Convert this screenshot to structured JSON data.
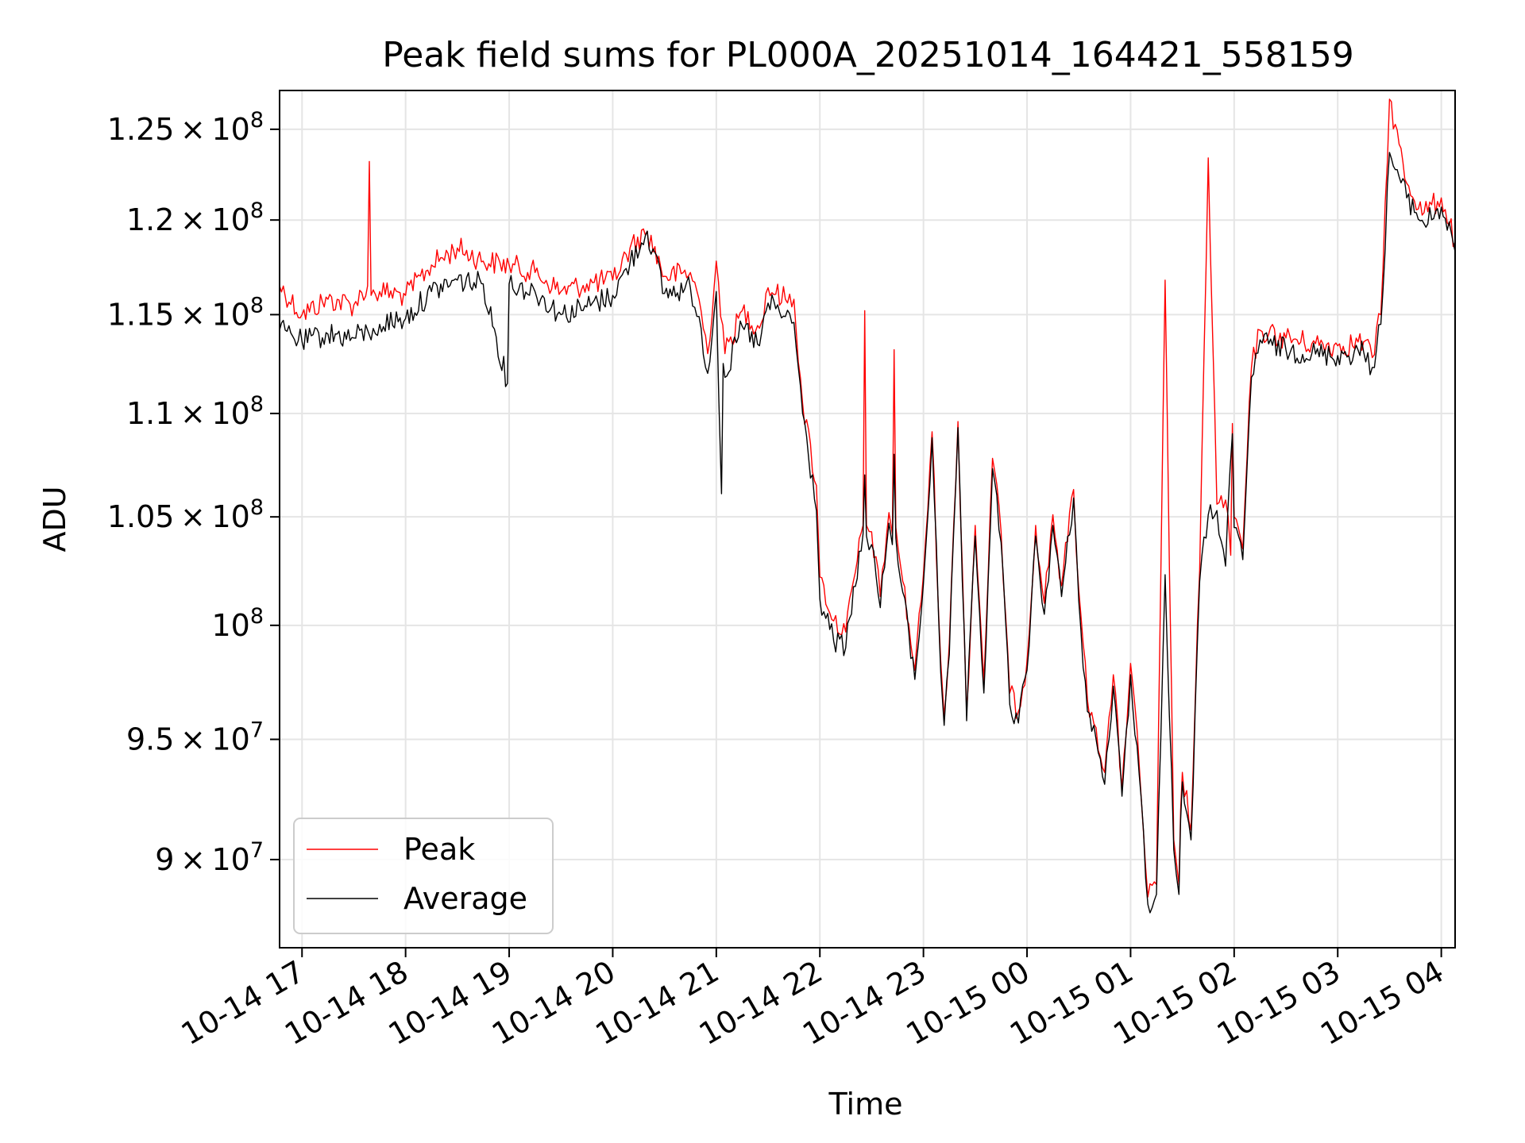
{
  "chart_data": {
    "type": "line",
    "title": "Peak field sums for PL000A_20251014_164421_558159",
    "xlabel": "Time",
    "ylabel": "ADU",
    "xlim": [
      "2025-10-14 16:47",
      "2025-10-15 04:08"
    ],
    "ylim": [
      86500000,
      127200000
    ],
    "x_ticks": [
      {
        "t": "2025-10-14 17:00",
        "label": "10-14 17"
      },
      {
        "t": "2025-10-14 18:00",
        "label": "10-14 18"
      },
      {
        "t": "2025-10-14 19:00",
        "label": "10-14 19"
      },
      {
        "t": "2025-10-14 20:00",
        "label": "10-14 20"
      },
      {
        "t": "2025-10-14 21:00",
        "label": "10-14 21"
      },
      {
        "t": "2025-10-14 22:00",
        "label": "10-14 22"
      },
      {
        "t": "2025-10-14 23:00",
        "label": "10-14 23"
      },
      {
        "t": "2025-10-15 00:00",
        "label": "10-15 00"
      },
      {
        "t": "2025-10-15 01:00",
        "label": "10-15 01"
      },
      {
        "t": "2025-10-15 02:00",
        "label": "10-15 02"
      },
      {
        "t": "2025-10-15 03:00",
        "label": "10-15 03"
      },
      {
        "t": "2025-10-15 04:00",
        "label": "10-15 04"
      }
    ],
    "y_ticks": [
      {
        "v": 90000000,
        "mant": "9",
        "exp": "7"
      },
      {
        "v": 95000000,
        "mant": "9.5",
        "exp": "7"
      },
      {
        "v": 100000000,
        "mant": "",
        "exp": "8"
      },
      {
        "v": 105000000,
        "mant": "1.05",
        "exp": "8"
      },
      {
        "v": 110000000,
        "mant": "1.1",
        "exp": "8"
      },
      {
        "v": 115000000,
        "mant": "1.15",
        "exp": "8"
      },
      {
        "v": 120000000,
        "mant": "1.2",
        "exp": "8"
      },
      {
        "v": 125000000,
        "mant": "1.25",
        "exp": "8"
      }
    ],
    "log_scale": "y",
    "grid": true,
    "legend_position": "lower-left",
    "series": [
      {
        "name": "Peak",
        "color": "#ff0000",
        "x": [
          "2025-10-14 16:47",
          "2025-10-14 17:00",
          "2025-10-14 17:15",
          "2025-10-14 17:30",
          "2025-10-14 17:38",
          "2025-10-14 17:39",
          "2025-10-14 17:40",
          "2025-10-14 17:45",
          "2025-10-14 18:00",
          "2025-10-14 18:15",
          "2025-10-14 18:30",
          "2025-10-14 18:45",
          "2025-10-14 19:00",
          "2025-10-14 19:15",
          "2025-10-14 19:30",
          "2025-10-14 19:45",
          "2025-10-14 20:00",
          "2025-10-14 20:10",
          "2025-10-14 20:20",
          "2025-10-14 20:30",
          "2025-10-14 20:45",
          "2025-10-14 20:50",
          "2025-10-14 20:55",
          "2025-10-14 21:00",
          "2025-10-14 21:05",
          "2025-10-14 21:15",
          "2025-10-14 21:25",
          "2025-10-14 21:30",
          "2025-10-14 21:40",
          "2025-10-14 21:45",
          "2025-10-14 21:50",
          "2025-10-14 21:58",
          "2025-10-14 22:00",
          "2025-10-14 22:08",
          "2025-10-14 22:15",
          "2025-10-14 22:25",
          "2025-10-14 22:26",
          "2025-10-14 22:27",
          "2025-10-14 22:30",
          "2025-10-14 22:35",
          "2025-10-14 22:40",
          "2025-10-14 22:42",
          "2025-10-14 22:43",
          "2025-10-14 22:44",
          "2025-10-14 22:48",
          "2025-10-14 22:55",
          "2025-10-14 23:00",
          "2025-10-14 23:05",
          "2025-10-14 23:10",
          "2025-10-14 23:12",
          "2025-10-14 23:15",
          "2025-10-14 23:20",
          "2025-10-14 23:25",
          "2025-10-14 23:30",
          "2025-10-14 23:35",
          "2025-10-14 23:40",
          "2025-10-14 23:45",
          "2025-10-14 23:50",
          "2025-10-14 23:55",
          "2025-10-15 00:00",
          "2025-10-15 00:05",
          "2025-10-15 00:10",
          "2025-10-15 00:15",
          "2025-10-15 00:20",
          "2025-10-15 00:27",
          "2025-10-15 00:30",
          "2025-10-15 00:35",
          "2025-10-15 00:40",
          "2025-10-15 00:45",
          "2025-10-15 00:50",
          "2025-10-15 00:55",
          "2025-10-15 01:00",
          "2025-10-15 01:05",
          "2025-10-15 01:10",
          "2025-10-15 01:15",
          "2025-10-15 01:20",
          "2025-10-15 01:25",
          "2025-10-15 01:28",
          "2025-10-15 01:29",
          "2025-10-15 01:30",
          "2025-10-15 01:35",
          "2025-10-15 01:40",
          "2025-10-15 01:45",
          "2025-10-15 01:50",
          "2025-10-15 01:55",
          "2025-10-15 01:58",
          "2025-10-15 01:59",
          "2025-10-15 02:00",
          "2025-10-15 02:05",
          "2025-10-15 02:10",
          "2025-10-15 02:15",
          "2025-10-15 02:20",
          "2025-10-15 02:30",
          "2025-10-15 02:45",
          "2025-10-15 03:00",
          "2025-10-15 03:15",
          "2025-10-15 03:20",
          "2025-10-15 03:25",
          "2025-10-15 03:30",
          "2025-10-15 03:40",
          "2025-10-15 03:50",
          "2025-10-15 04:00",
          "2025-10-15 04:08"
        ],
        "y": [
          116500000,
          115000000,
          115800000,
          115500000,
          116500000,
          123200000,
          116000000,
          116200000,
          116000000,
          117600000,
          118500000,
          117800000,
          117600000,
          117200000,
          116200000,
          116600000,
          116800000,
          118500000,
          119400000,
          117000000,
          117200000,
          115800000,
          113000000,
          117800000,
          113000000,
          115200000,
          114300000,
          116400000,
          115800000,
          115800000,
          110500000,
          106500000,
          102200000,
          100200000,
          99700000,
          104600000,
          115200000,
          104600000,
          104300000,
          101300000,
          105200000,
          104200000,
          113200000,
          104500000,
          102000000,
          98000000,
          102300000,
          109100000,
          98400000,
          96000000,
          99200000,
          109600000,
          96200000,
          104600000,
          97500000,
          107800000,
          104300000,
          97000000,
          96200000,
          98400000,
          104600000,
          101000000,
          105100000,
          101800000,
          106300000,
          101600000,
          96700000,
          95500000,
          93600000,
          97800000,
          93000000,
          98300000,
          93900000,
          88500000,
          89000000,
          116800000,
          90800000,
          89000000,
          92000000,
          93600000,
          91200000,
          102500000,
          123400000,
          105600000,
          105800000,
          103200000,
          109500000,
          105000000,
          103500000,
          112300000,
          114200000,
          114000000,
          113800000,
          113500000,
          113400000,
          113600000,
          112800000,
          115000000,
          126700000,
          122000000,
          120400000,
          121200000,
          118800000
        ]
      },
      {
        "name": "Average",
        "color": "#000000",
        "x": [
          "2025-10-14 16:47",
          "2025-10-14 17:00",
          "2025-10-14 17:15",
          "2025-10-14 17:30",
          "2025-10-14 17:38",
          "2025-10-14 17:40",
          "2025-10-14 17:45",
          "2025-10-14 18:00",
          "2025-10-14 18:15",
          "2025-10-14 18:30",
          "2025-10-14 18:45",
          "2025-10-14 18:59",
          "2025-10-14 19:00",
          "2025-10-14 19:15",
          "2025-10-14 19:30",
          "2025-10-14 19:45",
          "2025-10-14 20:00",
          "2025-10-14 20:10",
          "2025-10-14 20:20",
          "2025-10-14 20:30",
          "2025-10-14 20:45",
          "2025-10-14 20:50",
          "2025-10-14 20:55",
          "2025-10-14 21:00",
          "2025-10-14 21:03",
          "2025-10-14 21:04",
          "2025-10-14 21:05",
          "2025-10-14 21:15",
          "2025-10-14 21:25",
          "2025-10-14 21:30",
          "2025-10-14 21:40",
          "2025-10-14 21:45",
          "2025-10-14 21:50",
          "2025-10-14 21:58",
          "2025-10-14 22:00",
          "2025-10-14 22:08",
          "2025-10-14 22:15",
          "2025-10-14 22:25",
          "2025-10-14 22:26",
          "2025-10-14 22:27",
          "2025-10-14 22:30",
          "2025-10-14 22:35",
          "2025-10-14 22:40",
          "2025-10-14 22:42",
          "2025-10-14 22:43",
          "2025-10-14 22:44",
          "2025-10-14 22:48",
          "2025-10-14 22:55",
          "2025-10-14 23:00",
          "2025-10-14 23:05",
          "2025-10-14 23:10",
          "2025-10-14 23:12",
          "2025-10-14 23:15",
          "2025-10-14 23:20",
          "2025-10-14 23:25",
          "2025-10-14 23:30",
          "2025-10-14 23:35",
          "2025-10-14 23:40",
          "2025-10-14 23:45",
          "2025-10-14 23:50",
          "2025-10-14 23:55",
          "2025-10-15 00:00",
          "2025-10-15 00:05",
          "2025-10-15 00:10",
          "2025-10-15 00:15",
          "2025-10-15 00:20",
          "2025-10-15 00:27",
          "2025-10-15 00:30",
          "2025-10-15 00:35",
          "2025-10-15 00:40",
          "2025-10-15 00:45",
          "2025-10-15 00:50",
          "2025-10-15 00:55",
          "2025-10-15 01:00",
          "2025-10-15 01:05",
          "2025-10-15 01:10",
          "2025-10-15 01:15",
          "2025-10-15 01:20",
          "2025-10-15 01:25",
          "2025-10-15 01:28",
          "2025-10-15 01:29",
          "2025-10-15 01:30",
          "2025-10-15 01:35",
          "2025-10-15 01:40",
          "2025-10-15 01:45",
          "2025-10-15 01:50",
          "2025-10-15 01:55",
          "2025-10-15 01:59",
          "2025-10-15 02:00",
          "2025-10-15 02:05",
          "2025-10-15 02:10",
          "2025-10-15 02:15",
          "2025-10-15 02:20",
          "2025-10-15 02:30",
          "2025-10-15 02:45",
          "2025-10-15 03:00",
          "2025-10-15 03:15",
          "2025-10-15 03:20",
          "2025-10-15 03:25",
          "2025-10-15 03:30",
          "2025-10-15 03:40",
          "2025-10-15 03:50",
          "2025-10-15 04:00",
          "2025-10-15 04:08"
        ],
        "y": [
          114200000,
          113600000,
          114000000,
          113800000,
          114200000,
          113700000,
          114500000,
          114800000,
          116200000,
          116800000,
          116600000,
          111500000,
          116600000,
          116200000,
          115000000,
          115400000,
          116000000,
          117700000,
          119400000,
          116100000,
          116400000,
          114900000,
          112000000,
          116200000,
          106100000,
          112500000,
          111800000,
          114400000,
          113400000,
          115600000,
          114900000,
          114600000,
          110000000,
          105300000,
          101200000,
          99300000,
          99000000,
          104200000,
          107000000,
          104100000,
          103700000,
          100800000,
          104700000,
          103700000,
          108000000,
          104000000,
          101500000,
          97600000,
          101900000,
          108800000,
          97900000,
          95600000,
          98700000,
          109300000,
          95800000,
          104100000,
          97000000,
          107300000,
          103800000,
          96500000,
          95700000,
          98000000,
          104100000,
          100500000,
          104600000,
          101300000,
          105900000,
          101100000,
          96200000,
          95000000,
          93100000,
          97300000,
          92600000,
          97800000,
          93500000,
          88200000,
          88600000,
          102300000,
          90400000,
          88600000,
          91600000,
          93200000,
          90800000,
          102000000,
          105100000,
          105300000,
          102700000,
          109000000,
          104500000,
          103000000,
          111800000,
          113700000,
          113500000,
          113200000,
          113000000,
          112900000,
          113100000,
          112300000,
          114500000,
          123700000,
          121200000,
          119800000,
          120700000,
          118300000
        ]
      }
    ]
  }
}
